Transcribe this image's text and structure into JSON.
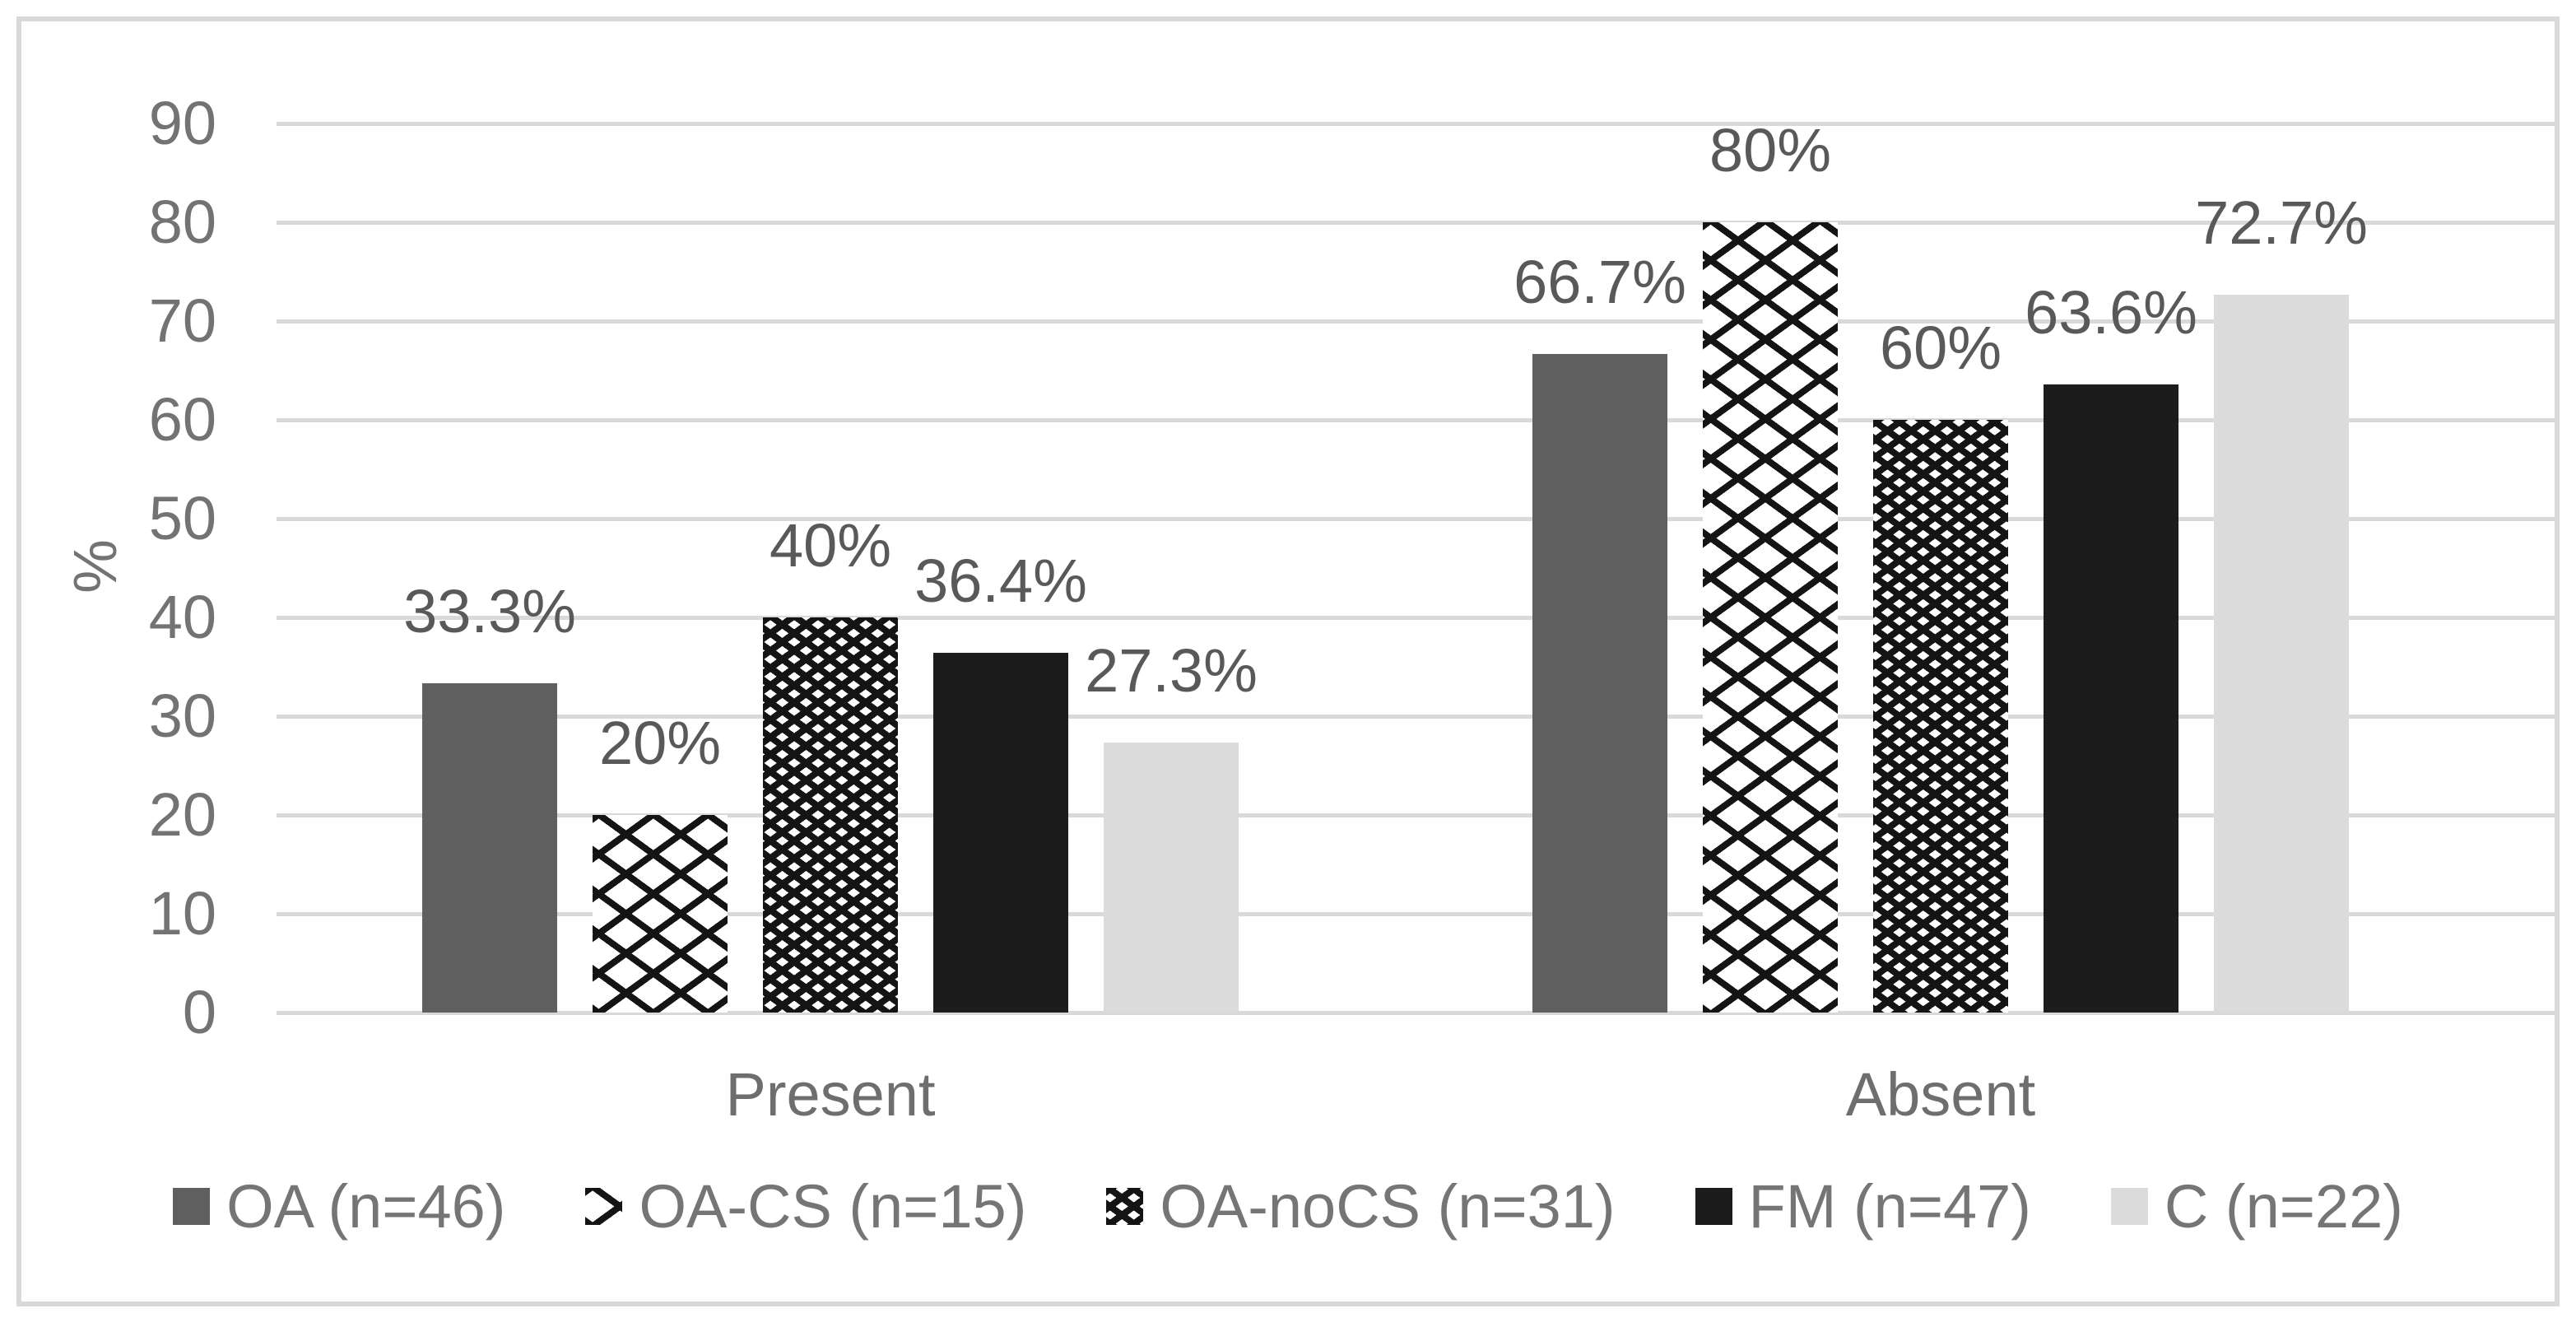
{
  "chart_data": {
    "type": "bar",
    "title": "",
    "xlabel": "",
    "ylabel": "%",
    "categories": [
      "Present",
      "Absent"
    ],
    "series": [
      {
        "name": "OA (n=46)",
        "values": [
          33.3,
          66.7
        ],
        "labels": [
          "33.3%",
          "66.7%"
        ],
        "fill": "solid",
        "color": "#5f5f5f"
      },
      {
        "name": "OA-CS (n=15)",
        "values": [
          20,
          80
        ],
        "labels": [
          "20%",
          "80%"
        ],
        "fill": "open-diamond",
        "color": "#141414"
      },
      {
        "name": "OA-noCS (n=31)",
        "values": [
          40,
          60
        ],
        "labels": [
          "40%",
          "60%"
        ],
        "fill": "dense-diamond",
        "color": "#141414"
      },
      {
        "name": "FM (n=47)",
        "values": [
          36.4,
          63.6
        ],
        "labels": [
          "36.4%",
          "63.6%"
        ],
        "fill": "solid",
        "color": "#1c1c1c"
      },
      {
        "name": "C (n=22)",
        "values": [
          27.3,
          72.7
        ],
        "labels": [
          "27.3%",
          "72.7%"
        ],
        "fill": "solid",
        "color": "#dbdbdb"
      }
    ],
    "y_axis": {
      "min": 0,
      "max": 90,
      "step": 10,
      "tick_labels": [
        "0",
        "10",
        "20",
        "30",
        "40",
        "50",
        "60",
        "70",
        "80",
        "90"
      ]
    },
    "grid": true,
    "legend_position": "bottom"
  },
  "colors": {
    "gridline": "#d9d9d9",
    "frame_border": "#d9d9d9",
    "tick_text": "#737373",
    "value_label_text": "#595959",
    "category_text": "#6e6e6e",
    "legend_text": "#757575",
    "background": "#ffffff"
  }
}
